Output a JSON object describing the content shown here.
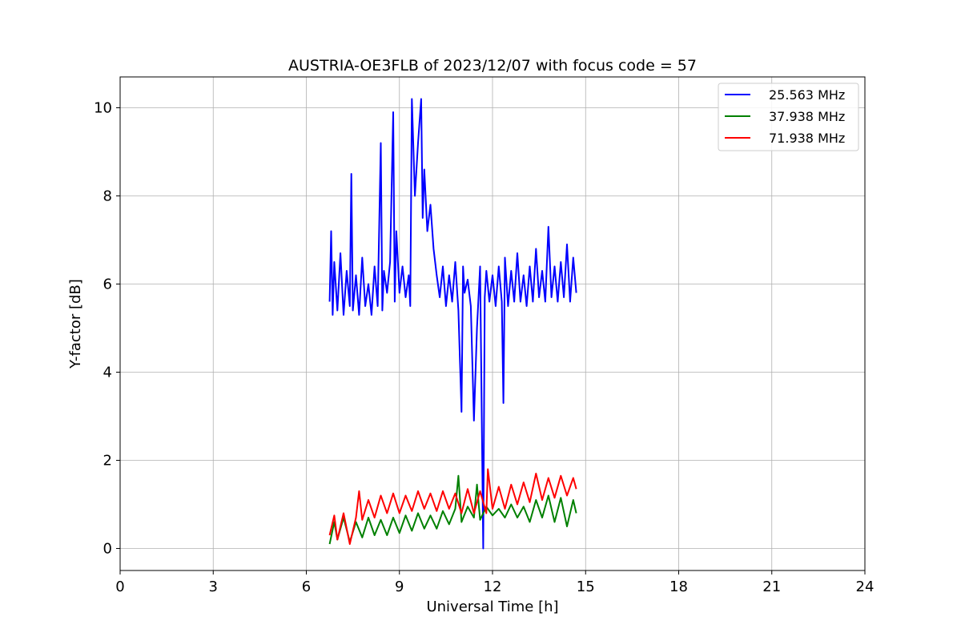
{
  "chart_data": {
    "type": "line",
    "title": "AUSTRIA-OE3FLB of 2023/12/07 with focus code = 57",
    "xlabel": "Universal Time [h]",
    "ylabel": "Y-factor [dB]",
    "xlim": [
      0,
      24
    ],
    "ylim": [
      -0.5,
      10.7
    ],
    "xticks": [
      0,
      3,
      6,
      9,
      12,
      15,
      18,
      21,
      24
    ],
    "yticks": [
      0,
      2,
      4,
      6,
      8,
      10
    ],
    "grid": true,
    "legend_position": "top-right",
    "series": [
      {
        "name": "25.563 MHz",
        "color": "#0000ff",
        "x": [
          6.75,
          6.8,
          6.85,
          6.9,
          7.0,
          7.1,
          7.2,
          7.3,
          7.4,
          7.45,
          7.5,
          7.6,
          7.7,
          7.8,
          7.9,
          8.0,
          8.1,
          8.2,
          8.3,
          8.4,
          8.45,
          8.5,
          8.6,
          8.7,
          8.8,
          8.85,
          8.9,
          9.0,
          9.1,
          9.2,
          9.3,
          9.35,
          9.4,
          9.5,
          9.6,
          9.7,
          9.75,
          9.8,
          9.9,
          10.0,
          10.1,
          10.2,
          10.3,
          10.4,
          10.5,
          10.6,
          10.7,
          10.8,
          10.9,
          11.0,
          11.05,
          11.1,
          11.2,
          11.3,
          11.4,
          11.5,
          11.6,
          11.7,
          11.75,
          11.8,
          11.9,
          12.0,
          12.1,
          12.2,
          12.3,
          12.35,
          12.4,
          12.5,
          12.6,
          12.7,
          12.8,
          12.9,
          13.0,
          13.1,
          13.2,
          13.3,
          13.4,
          13.5,
          13.6,
          13.7,
          13.8,
          13.9,
          14.0,
          14.1,
          14.2,
          14.3,
          14.4,
          14.5,
          14.6,
          14.7
        ],
        "y": [
          5.6,
          7.2,
          5.3,
          6.5,
          5.4,
          6.7,
          5.3,
          6.3,
          5.5,
          8.5,
          5.4,
          6.2,
          5.3,
          6.6,
          5.5,
          6.0,
          5.3,
          6.4,
          5.5,
          9.2,
          5.4,
          6.3,
          5.8,
          6.5,
          9.9,
          5.6,
          7.2,
          5.8,
          6.4,
          5.7,
          6.2,
          5.5,
          10.2,
          8.0,
          9.2,
          10.2,
          7.5,
          8.6,
          7.2,
          7.8,
          6.8,
          6.2,
          5.7,
          6.4,
          5.5,
          6.2,
          5.6,
          6.5,
          5.4,
          3.1,
          6.4,
          5.8,
          6.1,
          5.5,
          2.9,
          5.0,
          6.4,
          0.0,
          5.7,
          6.3,
          5.6,
          6.2,
          5.5,
          6.4,
          5.6,
          3.3,
          6.6,
          5.5,
          6.3,
          5.6,
          6.7,
          5.6,
          6.2,
          5.5,
          6.4,
          5.6,
          6.8,
          5.7,
          6.3,
          5.6,
          7.3,
          5.7,
          6.4,
          5.6,
          6.5,
          5.7,
          6.9,
          5.6,
          6.6,
          5.8
        ]
      },
      {
        "name": "37.938 MHz",
        "color": "#008000",
        "x": [
          6.75,
          6.9,
          7.0,
          7.2,
          7.4,
          7.6,
          7.8,
          8.0,
          8.2,
          8.4,
          8.6,
          8.8,
          9.0,
          9.2,
          9.4,
          9.6,
          9.8,
          10.0,
          10.2,
          10.4,
          10.6,
          10.8,
          10.9,
          11.0,
          11.2,
          11.4,
          11.5,
          11.6,
          11.8,
          12.0,
          12.2,
          12.4,
          12.6,
          12.8,
          13.0,
          13.2,
          13.4,
          13.6,
          13.8,
          14.0,
          14.2,
          14.4,
          14.6,
          14.7
        ],
        "y": [
          0.1,
          0.6,
          0.2,
          0.7,
          0.15,
          0.6,
          0.25,
          0.7,
          0.3,
          0.65,
          0.3,
          0.7,
          0.35,
          0.75,
          0.4,
          0.8,
          0.45,
          0.75,
          0.45,
          0.85,
          0.55,
          0.9,
          1.65,
          0.6,
          0.95,
          0.7,
          1.45,
          0.65,
          0.95,
          0.75,
          0.9,
          0.7,
          1.0,
          0.7,
          0.95,
          0.6,
          1.1,
          0.7,
          1.2,
          0.6,
          1.15,
          0.5,
          1.1,
          0.8
        ]
      },
      {
        "name": "71.938 MHz",
        "color": "#ff0000",
        "x": [
          6.75,
          6.9,
          7.0,
          7.2,
          7.4,
          7.6,
          7.7,
          7.8,
          8.0,
          8.2,
          8.4,
          8.6,
          8.8,
          9.0,
          9.2,
          9.4,
          9.6,
          9.8,
          10.0,
          10.2,
          10.4,
          10.6,
          10.8,
          11.0,
          11.2,
          11.4,
          11.6,
          11.8,
          11.85,
          12.0,
          12.2,
          12.4,
          12.6,
          12.8,
          13.0,
          13.2,
          13.4,
          13.6,
          13.8,
          14.0,
          14.2,
          14.4,
          14.6,
          14.7
        ],
        "y": [
          0.3,
          0.75,
          0.2,
          0.8,
          0.1,
          0.7,
          1.3,
          0.65,
          1.1,
          0.7,
          1.2,
          0.8,
          1.25,
          0.8,
          1.2,
          0.85,
          1.3,
          0.9,
          1.25,
          0.85,
          1.3,
          0.9,
          1.25,
          0.8,
          1.35,
          0.8,
          1.3,
          0.8,
          1.8,
          0.9,
          1.4,
          0.9,
          1.45,
          1.0,
          1.5,
          1.05,
          1.7,
          1.1,
          1.6,
          1.15,
          1.65,
          1.2,
          1.6,
          1.35
        ]
      }
    ]
  }
}
